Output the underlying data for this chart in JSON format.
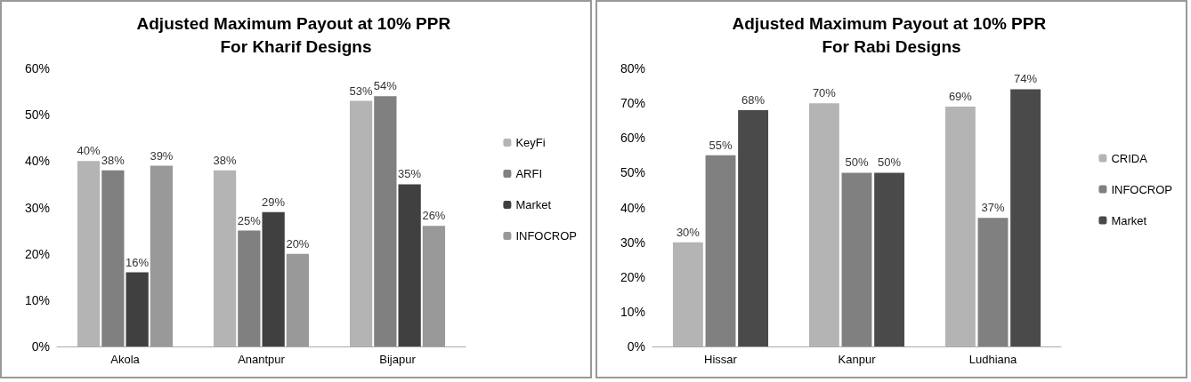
{
  "chart_data": [
    {
      "type": "bar",
      "title": "Adjusted Maximum Payout at 10% PPR For Kharif Designs",
      "categories": [
        "Akola",
        "Anantpur",
        "Bijapur"
      ],
      "series": [
        {
          "name": "KeyFi",
          "color": "#b4b4b4",
          "values": [
            40,
            38,
            53
          ],
          "value_labels": [
            "40%",
            "38%",
            "53%"
          ]
        },
        {
          "name": "ARFI",
          "color": "#808080",
          "values": [
            38,
            25,
            54
          ],
          "value_labels": [
            "38%",
            "25%",
            "54%"
          ]
        },
        {
          "name": "Market",
          "color": "#404040",
          "values": [
            16,
            29,
            35
          ],
          "value_labels": [
            "16%",
            "29%",
            "35%"
          ]
        },
        {
          "name": "INFOCROP",
          "color": "#999999",
          "values": [
            39,
            20,
            26
          ],
          "value_labels": [
            "39%",
            "20%",
            "26%"
          ]
        }
      ],
      "ylim": [
        0,
        60
      ],
      "yticks": [
        {
          "value": 0,
          "label": "0%"
        },
        {
          "value": 10,
          "label": "10%"
        },
        {
          "value": 20,
          "label": "20%"
        },
        {
          "value": 30,
          "label": "30%"
        },
        {
          "value": 40,
          "label": "40%"
        },
        {
          "value": 50,
          "label": "50%"
        },
        {
          "value": 60,
          "label": "60%"
        }
      ],
      "legend": "right"
    },
    {
      "type": "bar",
      "title": "Adjusted Maximum Payout at 10% PPR For Rabi Designs",
      "categories": [
        "Hissar",
        "Kanpur",
        "Ludhiana"
      ],
      "series": [
        {
          "name": "CRIDA",
          "color": "#b4b4b4",
          "values": [
            30,
            70,
            69
          ],
          "value_labels": [
            "30%",
            "70%",
            "69%"
          ]
        },
        {
          "name": "INFOCROP",
          "color": "#808080",
          "values": [
            55,
            50,
            37
          ],
          "value_labels": [
            "55%",
            "50%",
            "37%"
          ]
        },
        {
          "name": "Market",
          "color": "#4a4a4a",
          "values": [
            68,
            50,
            74
          ],
          "value_labels": [
            "68%",
            "50%",
            "74%"
          ]
        }
      ],
      "ylim": [
        0,
        80
      ],
      "yticks": [
        {
          "value": 0,
          "label": "0%"
        },
        {
          "value": 10,
          "label": "10%"
        },
        {
          "value": 20,
          "label": "20%"
        },
        {
          "value": 30,
          "label": "30%"
        },
        {
          "value": 40,
          "label": "40%"
        },
        {
          "value": 50,
          "label": "50%"
        },
        {
          "value": 60,
          "label": "60%"
        },
        {
          "value": 70,
          "label": "70%"
        },
        {
          "value": 80,
          "label": "80%"
        }
      ],
      "legend": "right"
    }
  ]
}
